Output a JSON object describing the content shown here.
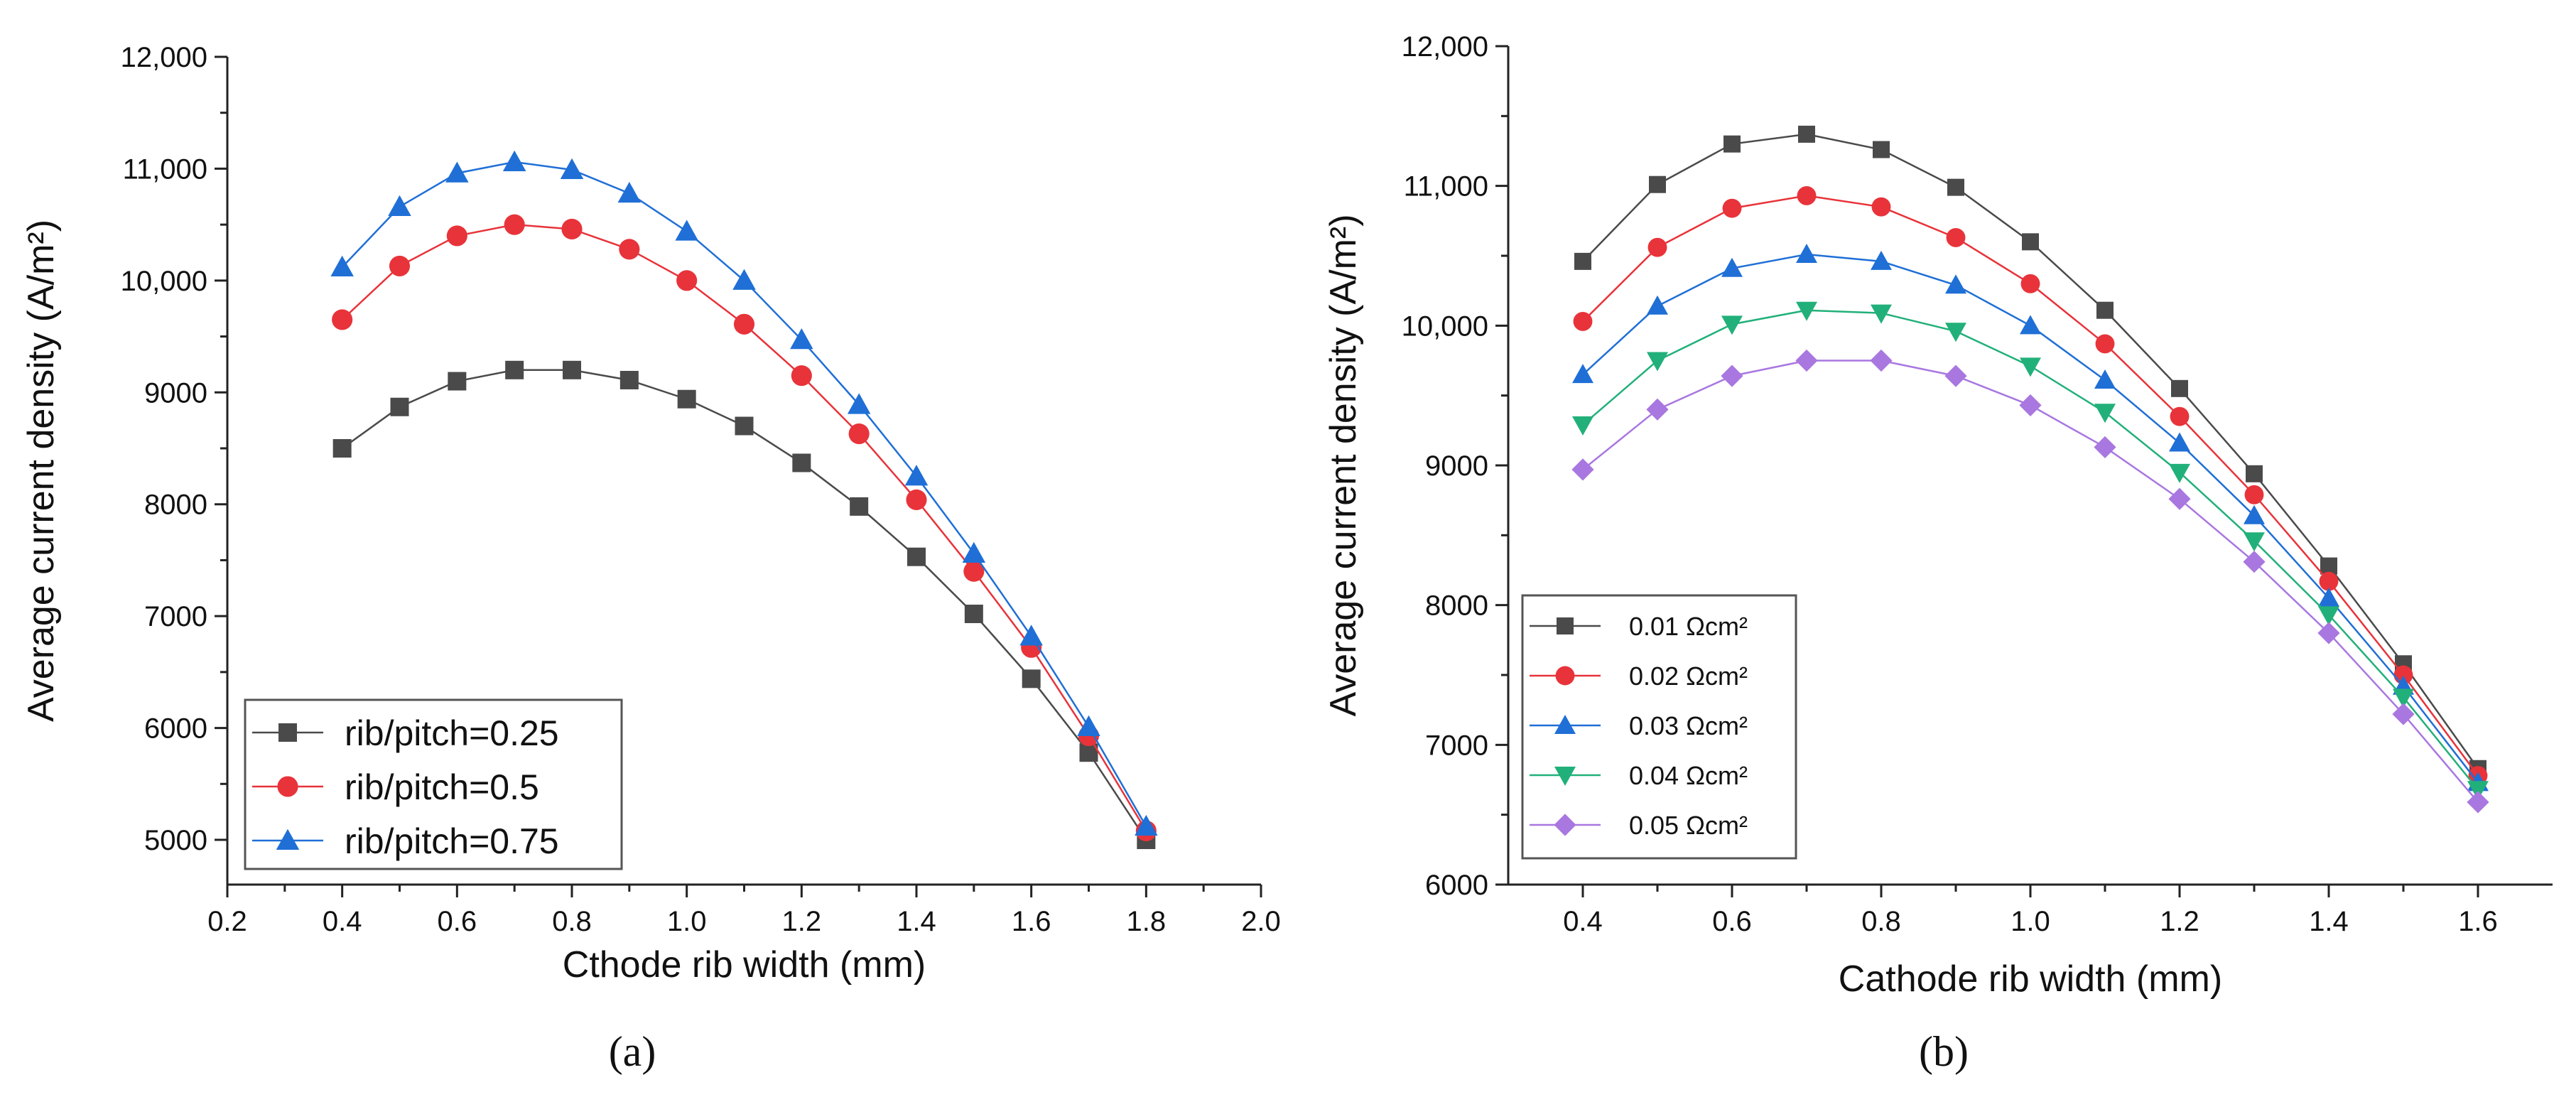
{
  "chart_data": [
    {
      "type": "line",
      "panel_label": "(a)",
      "xlabel": "Cthode rib width (mm)",
      "ylabel": "Average current density (A/m²)",
      "xlim": [
        0.2,
        2.0
      ],
      "ylim": [
        4600,
        12000
      ],
      "x_ticks": [
        "0.2",
        "0.4",
        "0.6",
        "0.8",
        "1.0",
        "1.2",
        "1.4",
        "1.6",
        "1.8",
        "2.0"
      ],
      "y_ticks": [
        "5000",
        "6000",
        "7000",
        "8000",
        "9000",
        "10,000",
        "11,000",
        "12,000"
      ],
      "grid": false,
      "legend_position": "bottom-left",
      "x": [
        0.4,
        0.5,
        0.6,
        0.7,
        0.8,
        0.9,
        1.0,
        1.1,
        1.2,
        1.3,
        1.4,
        1.5,
        1.6,
        1.7,
        1.8
      ],
      "series": [
        {
          "name": "rib/pitch=0.25",
          "marker": "square",
          "color": "#4a4a4a",
          "values": [
            8500,
            8870,
            9100,
            9200,
            9200,
            9110,
            8940,
            8700,
            8370,
            7980,
            7530,
            7020,
            6440,
            5780,
            5000
          ]
        },
        {
          "name": "rib/pitch=0.5",
          "marker": "circle",
          "color": "#e8333a",
          "values": [
            9650,
            10130,
            10400,
            10500,
            10460,
            10280,
            10000,
            9610,
            9150,
            8630,
            8040,
            7400,
            6720,
            5930,
            5080
          ]
        },
        {
          "name": "rib/pitch=0.75",
          "marker": "triangle-up",
          "color": "#1f6fd6",
          "values": [
            10120,
            10660,
            10960,
            11060,
            10990,
            10780,
            10440,
            10000,
            9470,
            8890,
            8250,
            7560,
            6820,
            6010,
            5120
          ]
        }
      ]
    },
    {
      "type": "line",
      "panel_label": "(b)",
      "xlabel": "Cathode rib width (mm)",
      "ylabel": "Average current density (A/m²)",
      "xlim": [
        0.3,
        1.7
      ],
      "ylim": [
        6000,
        12000
      ],
      "x_ticks": [
        "0.4",
        "0.6",
        "0.8",
        "1.0",
        "1.2",
        "1.4",
        "1.6"
      ],
      "y_ticks": [
        "6000",
        "7000",
        "8000",
        "9000",
        "10,000",
        "11,000",
        "12,000"
      ],
      "grid": false,
      "legend_position": "bottom-left",
      "x": [
        0.4,
        0.5,
        0.6,
        0.7,
        0.8,
        0.9,
        1.0,
        1.1,
        1.2,
        1.3,
        1.4,
        1.5,
        1.6
      ],
      "series": [
        {
          "name": "0.01 Ωcm²",
          "marker": "square",
          "color": "#4a4a4a",
          "values": [
            10460,
            11010,
            11300,
            11370,
            11260,
            10990,
            10600,
            10110,
            9550,
            8940,
            8280,
            7580,
            6830
          ]
        },
        {
          "name": "0.02 Ωcm²",
          "marker": "circle",
          "color": "#e8333a",
          "values": [
            10030,
            10560,
            10840,
            10930,
            10850,
            10630,
            10300,
            9870,
            9350,
            8790,
            8170,
            7500,
            6780
          ]
        },
        {
          "name": "0.03 Ωcm²",
          "marker": "triangle-up",
          "color": "#1f6fd6",
          "values": [
            9650,
            10140,
            10410,
            10510,
            10460,
            10290,
            10000,
            9610,
            9160,
            8640,
            8050,
            7420,
            6730
          ]
        },
        {
          "name": "0.04 Ωcm²",
          "marker": "triangle-down",
          "color": "#22b07a",
          "values": [
            9290,
            9750,
            10010,
            10110,
            10090,
            9960,
            9710,
            9380,
            8950,
            8460,
            7930,
            7340,
            6680
          ]
        },
        {
          "name": "0.05 Ωcm²",
          "marker": "diamond",
          "color": "#a977e0",
          "values": [
            8970,
            9400,
            9640,
            9750,
            9750,
            9640,
            9430,
            9130,
            8760,
            8310,
            7800,
            7220,
            6590
          ]
        }
      ]
    }
  ]
}
